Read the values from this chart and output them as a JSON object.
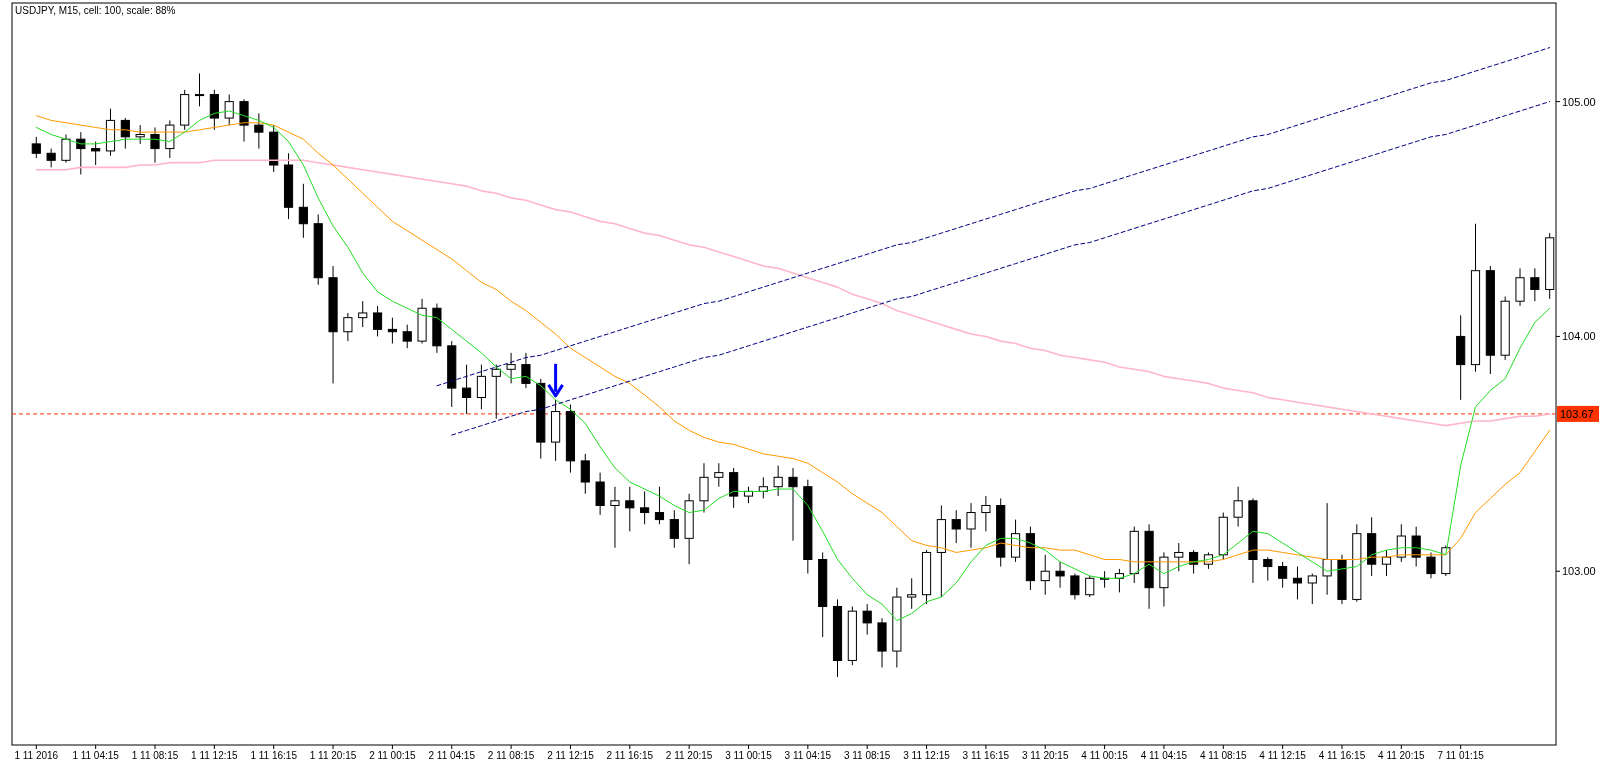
{
  "chart_data": {
    "type": "candlestick",
    "title": "USDJPY, M15, cell: 100, scale: 88%",
    "categories": [
      "1 11 2016",
      null,
      null,
      null,
      "1 11 04:15",
      null,
      null,
      null,
      "1 11 08:15",
      null,
      null,
      null,
      "1 11 12:15",
      null,
      null,
      null,
      "1 11 16:15",
      null,
      null,
      null,
      "1 11 20:15",
      null,
      null,
      null,
      "2 11 00:15",
      null,
      null,
      null,
      "2 11 04:15",
      null,
      null,
      null,
      "2 11 08:15",
      null,
      null,
      null,
      "2 11 12:15",
      null,
      null,
      null,
      "2 11 16:15",
      null,
      null,
      null,
      "2 11 20:15",
      null,
      null,
      null,
      "3 11 00:15",
      null,
      null,
      null,
      "3 11 04:15",
      null,
      null,
      null,
      "3 11 08:15",
      null,
      null,
      null,
      "3 11 12:15",
      null,
      null,
      null,
      "3 11 16:15",
      null,
      null,
      null,
      "3 11 20:15",
      null,
      null,
      null,
      "4 11 00:15",
      null,
      null,
      null,
      "4 11 04:15",
      null,
      null,
      null,
      "4 11 08:15",
      null,
      null,
      null,
      "4 11 12:15",
      null,
      null,
      null,
      "4 11 16:15",
      null,
      null,
      null,
      "4 11 20:15",
      null,
      null,
      null,
      "7 11 01:15",
      null,
      null,
      null,
      null,
      null,
      null
    ],
    "ohlc": [
      [
        104.82,
        104.85,
        104.76,
        104.78
      ],
      [
        104.78,
        104.8,
        104.72,
        104.75
      ],
      [
        104.75,
        104.86,
        104.74,
        104.84
      ],
      [
        104.84,
        104.87,
        104.69,
        104.8
      ],
      [
        104.8,
        104.83,
        104.73,
        104.79
      ],
      [
        104.79,
        104.97,
        104.77,
        104.92
      ],
      [
        104.92,
        104.93,
        104.8,
        104.85
      ],
      [
        104.85,
        104.9,
        104.82,
        104.86
      ],
      [
        104.86,
        104.89,
        104.74,
        104.8
      ],
      [
        104.8,
        104.92,
        104.76,
        104.9
      ],
      [
        104.9,
        105.05,
        104.88,
        105.03
      ],
      [
        105.03,
        105.12,
        104.98,
        105.03
      ],
      [
        105.03,
        105.05,
        104.88,
        104.93
      ],
      [
        104.93,
        105.03,
        104.9,
        105.0
      ],
      [
        105.0,
        105.01,
        104.83,
        104.9
      ],
      [
        104.9,
        104.95,
        104.8,
        104.87
      ],
      [
        104.87,
        104.9,
        104.7,
        104.73
      ],
      [
        104.73,
        104.78,
        104.5,
        104.55
      ],
      [
        104.55,
        104.65,
        104.42,
        104.48
      ],
      [
        104.48,
        104.52,
        104.22,
        104.25
      ],
      [
        104.25,
        104.3,
        103.8,
        104.02
      ],
      [
        104.02,
        104.1,
        103.98,
        104.08
      ],
      [
        104.08,
        104.15,
        104.04,
        104.1
      ],
      [
        104.1,
        104.13,
        104.0,
        104.03
      ],
      [
        104.03,
        104.08,
        103.97,
        104.02
      ],
      [
        104.02,
        104.05,
        103.95,
        103.98
      ],
      [
        103.98,
        104.16,
        103.97,
        104.12
      ],
      [
        104.12,
        104.14,
        103.93,
        103.96
      ],
      [
        103.96,
        103.98,
        103.7,
        103.78
      ],
      [
        103.78,
        103.88,
        103.67,
        103.74
      ],
      [
        103.74,
        103.88,
        103.69,
        103.83
      ],
      [
        103.83,
        103.88,
        103.65,
        103.86
      ],
      [
        103.86,
        103.93,
        103.8,
        103.88
      ],
      [
        103.88,
        103.93,
        103.78,
        103.8
      ],
      [
        103.8,
        103.82,
        103.48,
        103.55
      ],
      [
        103.55,
        103.73,
        103.47,
        103.68
      ],
      [
        103.68,
        103.71,
        103.42,
        103.47
      ],
      [
        103.47,
        103.5,
        103.33,
        103.38
      ],
      [
        103.38,
        103.42,
        103.24,
        103.28
      ],
      [
        103.28,
        103.36,
        103.1,
        103.3
      ],
      [
        103.3,
        103.36,
        103.17,
        103.27
      ],
      [
        103.27,
        103.34,
        103.2,
        103.25
      ],
      [
        103.25,
        103.36,
        103.2,
        103.22
      ],
      [
        103.22,
        103.26,
        103.1,
        103.14
      ],
      [
        103.14,
        103.33,
        103.03,
        103.3
      ],
      [
        103.3,
        103.46,
        103.25,
        103.4
      ],
      [
        103.4,
        103.46,
        103.36,
        103.42
      ],
      [
        103.42,
        103.44,
        103.27,
        103.32
      ],
      [
        103.32,
        103.36,
        103.29,
        103.34
      ],
      [
        103.34,
        103.4,
        103.31,
        103.36
      ],
      [
        103.36,
        103.45,
        103.32,
        103.4
      ],
      [
        103.4,
        103.44,
        103.13,
        103.36
      ],
      [
        103.36,
        103.39,
        102.99,
        103.05
      ],
      [
        103.05,
        103.08,
        102.72,
        102.85
      ],
      [
        102.85,
        102.88,
        102.55,
        102.62
      ],
      [
        102.62,
        102.85,
        102.6,
        102.83
      ],
      [
        102.83,
        102.86,
        102.73,
        102.78
      ],
      [
        102.78,
        102.8,
        102.59,
        102.66
      ],
      [
        102.66,
        102.93,
        102.59,
        102.89
      ],
      [
        102.89,
        102.97,
        102.84,
        102.9
      ],
      [
        102.9,
        103.09,
        102.86,
        103.08
      ],
      [
        103.08,
        103.28,
        102.89,
        103.22
      ],
      [
        103.22,
        103.26,
        103.12,
        103.18
      ],
      [
        103.18,
        103.29,
        103.1,
        103.25
      ],
      [
        103.25,
        103.32,
        103.17,
        103.28
      ],
      [
        103.28,
        103.31,
        103.02,
        103.06
      ],
      [
        103.06,
        103.22,
        103.04,
        103.16
      ],
      [
        103.16,
        103.19,
        102.92,
        102.96
      ],
      [
        102.96,
        103.07,
        102.9,
        103.0
      ],
      [
        103.0,
        103.04,
        102.93,
        102.98
      ],
      [
        102.98,
        102.99,
        102.88,
        102.9
      ],
      [
        102.9,
        102.98,
        102.89,
        102.97
      ],
      [
        102.97,
        103.0,
        102.93,
        102.97
      ],
      [
        102.97,
        103.01,
        102.91,
        102.99
      ],
      [
        102.99,
        103.19,
        102.95,
        103.17
      ],
      [
        103.17,
        103.2,
        102.84,
        102.93
      ],
      [
        102.93,
        103.08,
        102.85,
        103.06
      ],
      [
        103.06,
        103.12,
        103.0,
        103.08
      ],
      [
        103.08,
        103.09,
        102.99,
        103.03
      ],
      [
        103.03,
        103.08,
        103.01,
        103.07
      ],
      [
        103.07,
        103.25,
        103.05,
        103.23
      ],
      [
        103.23,
        103.36,
        103.19,
        103.3
      ],
      [
        103.3,
        103.31,
        102.95,
        103.05
      ],
      [
        103.05,
        103.06,
        102.96,
        103.02
      ],
      [
        103.02,
        103.04,
        102.93,
        102.97
      ],
      [
        102.97,
        103.02,
        102.88,
        102.95
      ],
      [
        102.95,
        102.99,
        102.86,
        102.98
      ],
      [
        102.98,
        103.29,
        102.9,
        103.05
      ],
      [
        103.05,
        103.07,
        102.86,
        102.88
      ],
      [
        102.88,
        103.2,
        102.87,
        103.16
      ],
      [
        103.16,
        103.23,
        102.98,
        103.03
      ],
      [
        103.03,
        103.09,
        102.98,
        103.06
      ],
      [
        103.06,
        103.2,
        103.04,
        103.15
      ],
      [
        103.15,
        103.19,
        103.02,
        103.06
      ],
      [
        103.06,
        103.08,
        102.97,
        102.99
      ],
      [
        102.99,
        103.11,
        102.98,
        103.1
      ],
      [
        104.0,
        104.09,
        103.73,
        103.88
      ],
      [
        103.88,
        104.48,
        103.85,
        104.28
      ],
      [
        104.28,
        104.3,
        103.84,
        103.92
      ],
      [
        103.92,
        104.17,
        103.9,
        104.15
      ],
      [
        104.15,
        104.29,
        104.13,
        104.25
      ],
      [
        104.25,
        104.29,
        104.15,
        104.2
      ],
      [
        104.2,
        104.44,
        104.16,
        104.42
      ]
    ],
    "series": [
      {
        "type": "line",
        "color": "#ffb6c8",
        "values": [
          104.71,
          104.71,
          104.71,
          104.72,
          104.72,
          104.72,
          104.72,
          104.73,
          104.73,
          104.74,
          104.74,
          104.74,
          104.75,
          104.75,
          104.75,
          104.75,
          104.75,
          104.75,
          104.75,
          104.74,
          104.73,
          104.72,
          104.71,
          104.7,
          104.69,
          104.68,
          104.67,
          104.66,
          104.65,
          104.64,
          104.62,
          104.61,
          104.59,
          104.58,
          104.56,
          104.54,
          104.53,
          104.51,
          104.49,
          104.48,
          104.46,
          104.44,
          104.43,
          104.41,
          104.39,
          104.38,
          104.36,
          104.34,
          104.32,
          104.3,
          104.29,
          104.27,
          104.25,
          104.23,
          104.21,
          104.18,
          104.16,
          104.14,
          104.11,
          104.09,
          104.07,
          104.05,
          104.03,
          104.01,
          104.0,
          103.98,
          103.97,
          103.95,
          103.94,
          103.92,
          103.91,
          103.9,
          103.89,
          103.87,
          103.86,
          103.85,
          103.83,
          103.82,
          103.81,
          103.8,
          103.78,
          103.77,
          103.76,
          103.74,
          103.73,
          103.72,
          103.71,
          103.7,
          103.69,
          103.68,
          103.67,
          103.66,
          103.65,
          103.64,
          103.63,
          103.62,
          103.63,
          103.64,
          103.64,
          103.65,
          103.66,
          103.66,
          103.67
        ]
      },
      {
        "type": "line",
        "color": "#ff9900",
        "values": [
          104.94,
          104.92,
          104.91,
          104.9,
          104.89,
          104.88,
          104.88,
          104.87,
          104.87,
          104.87,
          104.87,
          104.88,
          104.89,
          104.9,
          104.91,
          104.91,
          104.9,
          104.87,
          104.84,
          104.78,
          104.73,
          104.67,
          104.61,
          104.55,
          104.49,
          104.45,
          104.41,
          104.37,
          104.33,
          104.28,
          104.23,
          104.2,
          104.15,
          104.11,
          104.06,
          104.01,
          103.95,
          103.91,
          103.87,
          103.83,
          103.8,
          103.75,
          103.7,
          103.64,
          103.6,
          103.57,
          103.55,
          103.54,
          103.52,
          103.5,
          103.49,
          103.48,
          103.46,
          103.42,
          103.38,
          103.33,
          103.29,
          103.25,
          103.19,
          103.13,
          103.11,
          103.1,
          103.08,
          103.09,
          103.1,
          103.12,
          103.11,
          103.1,
          103.1,
          103.09,
          103.09,
          103.07,
          103.05,
          103.05,
          103.04,
          103.04,
          103.04,
          103.04,
          103.04,
          103.04,
          103.05,
          103.07,
          103.09,
          103.09,
          103.08,
          103.07,
          103.06,
          103.05,
          103.05,
          103.05,
          103.06,
          103.06,
          103.07,
          103.07,
          103.07,
          103.07,
          103.14,
          103.25,
          103.31,
          103.37,
          103.42,
          103.51,
          103.6
        ]
      },
      {
        "type": "line",
        "color": "#22dd22",
        "values": [
          104.89,
          104.86,
          104.84,
          104.82,
          104.82,
          104.83,
          104.84,
          104.84,
          104.84,
          104.83,
          104.87,
          104.92,
          104.95,
          104.96,
          104.94,
          104.92,
          104.89,
          104.83,
          104.73,
          104.59,
          104.47,
          104.38,
          104.27,
          104.19,
          104.15,
          104.12,
          104.09,
          104.08,
          104.03,
          103.98,
          103.93,
          103.87,
          103.82,
          103.83,
          103.79,
          103.73,
          103.69,
          103.63,
          103.53,
          103.44,
          103.38,
          103.35,
          103.32,
          103.28,
          103.25,
          103.26,
          103.31,
          103.34,
          103.34,
          103.34,
          103.35,
          103.35,
          103.28,
          103.17,
          103.05,
          102.97,
          102.9,
          102.86,
          102.79,
          102.82,
          102.87,
          102.89,
          102.95,
          103.04,
          103.11,
          103.14,
          103.14,
          103.12,
          103.09,
          103.04,
          103.01,
          102.98,
          102.97,
          102.97,
          102.99,
          103.03,
          102.99,
          103.02,
          103.04,
          103.05,
          103.07,
          103.12,
          103.17,
          103.16,
          103.12,
          103.08,
          103.04,
          103.0,
          103.01,
          103.02,
          103.07,
          103.09,
          103.1,
          103.1,
          103.09,
          103.07,
          103.45,
          103.7,
          103.77,
          103.82,
          103.95,
          104.06,
          104.12
        ]
      },
      {
        "type": "line",
        "color": "#000080",
        "line_style": "dashed",
        "values": [
          null,
          null,
          null,
          null,
          null,
          null,
          null,
          null,
          null,
          null,
          null,
          null,
          null,
          null,
          null,
          null,
          null,
          null,
          null,
          null,
          null,
          null,
          null,
          null,
          null,
          null,
          null,
          103.79,
          103.81,
          103.83,
          103.85,
          103.87,
          103.89,
          103.91,
          103.92,
          103.94,
          103.96,
          103.98,
          104.0,
          104.02,
          104.04,
          104.06,
          104.08,
          104.1,
          104.12,
          104.14,
          104.15,
          104.17,
          104.19,
          104.21,
          104.23,
          104.25,
          104.27,
          104.29,
          104.31,
          104.33,
          104.35,
          104.37,
          104.39,
          104.4,
          104.42,
          104.44,
          104.46,
          104.48,
          104.5,
          104.52,
          104.54,
          104.56,
          104.58,
          104.6,
          104.62,
          104.63,
          104.65,
          104.67,
          104.69,
          104.71,
          104.73,
          104.75,
          104.77,
          104.79,
          104.81,
          104.83,
          104.85,
          104.86,
          104.88,
          104.9,
          104.92,
          104.94,
          104.96,
          104.98,
          105.0,
          105.02,
          105.04,
          105.06,
          105.08,
          105.09,
          105.11,
          105.13,
          105.15,
          105.17,
          105.19,
          105.21,
          105.23
        ]
      },
      {
        "type": "line",
        "color": "#000080",
        "line_style": "dashed",
        "values": [
          null,
          null,
          null,
          null,
          null,
          null,
          null,
          null,
          null,
          null,
          null,
          null,
          null,
          null,
          null,
          null,
          null,
          null,
          null,
          null,
          null,
          null,
          null,
          null,
          null,
          null,
          null,
          null,
          103.58,
          103.6,
          103.62,
          103.64,
          103.66,
          103.68,
          103.69,
          103.71,
          103.73,
          103.75,
          103.77,
          103.79,
          103.81,
          103.83,
          103.85,
          103.87,
          103.89,
          103.91,
          103.92,
          103.94,
          103.96,
          103.98,
          104.0,
          104.02,
          104.04,
          104.06,
          104.08,
          104.1,
          104.12,
          104.14,
          104.16,
          104.17,
          104.19,
          104.21,
          104.23,
          104.25,
          104.27,
          104.29,
          104.31,
          104.33,
          104.35,
          104.37,
          104.39,
          104.4,
          104.42,
          104.44,
          104.46,
          104.48,
          104.5,
          104.52,
          104.54,
          104.56,
          104.58,
          104.6,
          104.62,
          104.63,
          104.65,
          104.67,
          104.69,
          104.71,
          104.73,
          104.75,
          104.77,
          104.79,
          104.81,
          104.83,
          104.85,
          104.86,
          104.88,
          104.9,
          104.92,
          104.94,
          104.96,
          104.98,
          105.0
        ]
      }
    ],
    "ylim": [
      102.26,
      105.42
    ],
    "yticks": [
      {
        "value": 103,
        "label": "103.00"
      },
      {
        "value": 104,
        "label": "104.00"
      },
      {
        "value": 105,
        "label": "105.00"
      }
    ],
    "ref_lines": [
      {
        "axis": "y",
        "value": 103.67,
        "label": "103.67",
        "color": "#ff3300",
        "line_style": "dashed"
      }
    ]
  }
}
